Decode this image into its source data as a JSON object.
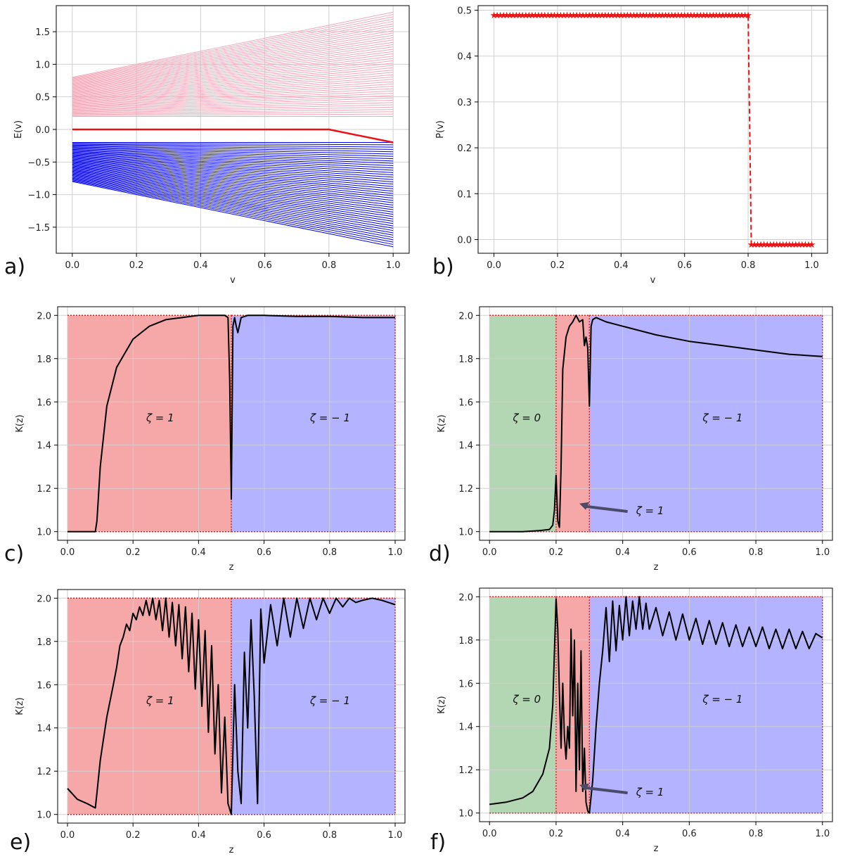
{
  "colors": {
    "pink_band": "#f4a6b8",
    "blue_band": "#0000ee",
    "red": "#ee1111",
    "region_red": "#f6a7a7",
    "region_blue": "#b3b3ff",
    "region_green": "#b2d7b2",
    "curve": "#000000",
    "grid": "#d0d0d0"
  },
  "chart_data": [
    {
      "id": "a",
      "panel_label": "a)",
      "type": "line",
      "title": "",
      "xlabel": "v",
      "ylabel": "E(v)",
      "xlim": [
        -0.05,
        1.05
      ],
      "ylim": [
        -1.9,
        1.9
      ],
      "xticks": [
        0.0,
        0.2,
        0.4,
        0.6,
        0.8,
        1.0
      ],
      "xtick_labels": [
        "0.0",
        "0.2",
        "0.4",
        "0.6",
        "0.8",
        "1.0"
      ],
      "yticks": [
        -1.5,
        -1.0,
        -0.5,
        0.0,
        0.5,
        1.0,
        1.5
      ],
      "ytick_labels": [
        "−1.5",
        "−1.0",
        "−0.5",
        "0.0",
        "0.5",
        "1.0",
        "1.5"
      ],
      "series": [
        {
          "name": "upper band (pink)",
          "description": "bulk states from E in [0.2,0.8] at v=0 fanning to [0.2,1.8] at v=1",
          "x": [
            0,
            1
          ],
          "y_min": [
            0.2,
            0.2
          ],
          "y_max": [
            0.8,
            1.8
          ]
        },
        {
          "name": "lower band (blue)",
          "description": "bulk states from E in [-0.8,-0.2] at v=0 fanning to [-1.8,-0.2] at v=1",
          "x": [
            0,
            1
          ],
          "y_min": [
            -0.8,
            -1.8
          ],
          "y_max": [
            -0.2,
            -0.2
          ]
        },
        {
          "name": "edge state (red)",
          "x": [
            0.0,
            0.8,
            1.0
          ],
          "y": [
            0.0,
            0.0,
            -0.2
          ]
        }
      ]
    },
    {
      "id": "b",
      "panel_label": "b)",
      "type": "line",
      "title": "",
      "xlabel": "v",
      "ylabel": "P(v)",
      "xlim": [
        -0.05,
        1.05
      ],
      "ylim": [
        -0.03,
        0.51
      ],
      "xticks": [
        0.0,
        0.2,
        0.4,
        0.6,
        0.8,
        1.0
      ],
      "xtick_labels": [
        "0.0",
        "0.2",
        "0.4",
        "0.6",
        "0.8",
        "1.0"
      ],
      "yticks": [
        0.0,
        0.1,
        0.2,
        0.3,
        0.4,
        0.5
      ],
      "ytick_labels": [
        "0.0",
        "0.1",
        "0.2",
        "0.3",
        "0.4",
        "0.5"
      ],
      "series": [
        {
          "name": "P(v)",
          "x": [
            0.0,
            0.8,
            0.81,
            1.0
          ],
          "y": [
            0.49,
            0.49,
            -0.01,
            -0.01
          ],
          "style": "dashed red with star markers"
        }
      ]
    },
    {
      "id": "c",
      "panel_label": "c)",
      "type": "area",
      "xlabel": "z",
      "ylabel": "K(z)",
      "xlim": [
        -0.03,
        1.03
      ],
      "ylim": [
        0.96,
        2.04
      ],
      "xticks": [
        0.0,
        0.2,
        0.4,
        0.6,
        0.8,
        1.0
      ],
      "xtick_labels": [
        "0.0",
        "0.2",
        "0.4",
        "0.6",
        "0.8",
        "1.0"
      ],
      "yticks": [
        1.0,
        1.2,
        1.4,
        1.6,
        1.8,
        2.0
      ],
      "ytick_labels": [
        "1.0",
        "1.2",
        "1.4",
        "1.6",
        "1.8",
        "2.0"
      ],
      "regions": [
        {
          "from": 0.0,
          "to": 0.5,
          "color": "red",
          "label": "ζ = 1",
          "label_x": 0.24,
          "label_y": 1.51
        },
        {
          "from": 0.5,
          "to": 1.0,
          "color": "blue",
          "label": "ζ = − 1",
          "label_x": 0.74,
          "label_y": 1.51
        }
      ],
      "series": [
        {
          "name": "K(z)",
          "x": [
            0.0,
            0.085,
            0.09,
            0.1,
            0.12,
            0.15,
            0.2,
            0.25,
            0.3,
            0.35,
            0.4,
            0.45,
            0.48,
            0.49,
            0.495,
            0.5,
            0.505,
            0.51,
            0.515,
            0.52,
            0.53,
            0.55,
            0.6,
            0.7,
            0.8,
            0.9,
            1.0
          ],
          "y": [
            1.0,
            1.0,
            1.05,
            1.3,
            1.58,
            1.76,
            1.89,
            1.95,
            1.98,
            1.99,
            2.0,
            2.0,
            2.0,
            1.99,
            1.7,
            1.15,
            1.95,
            1.99,
            1.95,
            1.92,
            1.99,
            2.0,
            2.0,
            1.995,
            1.995,
            1.99,
            1.99
          ]
        }
      ]
    },
    {
      "id": "d",
      "panel_label": "d)",
      "type": "area",
      "xlabel": "z",
      "ylabel": "K(z)",
      "xlim": [
        -0.03,
        1.03
      ],
      "ylim": [
        0.96,
        2.04
      ],
      "xticks": [
        0.0,
        0.2,
        0.4,
        0.6,
        0.8,
        1.0
      ],
      "xtick_labels": [
        "0.0",
        "0.2",
        "0.4",
        "0.6",
        "0.8",
        "1.0"
      ],
      "yticks": [
        1.0,
        1.2,
        1.4,
        1.6,
        1.8,
        2.0
      ],
      "ytick_labels": [
        "1.0",
        "1.2",
        "1.4",
        "1.6",
        "1.8",
        "2.0"
      ],
      "regions": [
        {
          "from": 0.0,
          "to": 0.2,
          "color": "green",
          "label": "ζ = 0",
          "label_x": 0.07,
          "label_y": 1.51
        },
        {
          "from": 0.2,
          "to": 0.3,
          "color": "red",
          "label": "ζ = 1",
          "label_x": 0.44,
          "label_y": 1.08,
          "arrow_to": [
            0.27,
            1.13
          ]
        },
        {
          "from": 0.3,
          "to": 1.0,
          "color": "blue",
          "label": "ζ = − 1",
          "label_x": 0.64,
          "label_y": 1.51
        }
      ],
      "series": [
        {
          "name": "K(z)",
          "x": [
            0.0,
            0.1,
            0.15,
            0.18,
            0.19,
            0.195,
            0.2,
            0.205,
            0.21,
            0.215,
            0.22,
            0.23,
            0.24,
            0.25,
            0.26,
            0.27,
            0.28,
            0.285,
            0.29,
            0.295,
            0.3,
            0.305,
            0.31,
            0.32,
            0.35,
            0.4,
            0.5,
            0.6,
            0.7,
            0.8,
            0.9,
            1.0
          ],
          "y": [
            1.0,
            1.0,
            1.005,
            1.01,
            1.03,
            1.1,
            1.26,
            1.05,
            1.02,
            1.3,
            1.75,
            1.9,
            1.95,
            1.97,
            2.0,
            1.97,
            1.98,
            1.86,
            1.9,
            1.85,
            1.58,
            1.95,
            1.98,
            1.99,
            1.97,
            1.95,
            1.91,
            1.88,
            1.86,
            1.84,
            1.82,
            1.81
          ]
        }
      ]
    },
    {
      "id": "e",
      "panel_label": "e)",
      "type": "area",
      "xlabel": "z",
      "ylabel": "K(z)",
      "xlim": [
        -0.03,
        1.03
      ],
      "ylim": [
        0.96,
        2.04
      ],
      "xticks": [
        0.0,
        0.2,
        0.4,
        0.6,
        0.8,
        1.0
      ],
      "xtick_labels": [
        "0.0",
        "0.2",
        "0.4",
        "0.6",
        "0.8",
        "1.0"
      ],
      "yticks": [
        1.0,
        1.2,
        1.4,
        1.6,
        1.8,
        2.0
      ],
      "ytick_labels": [
        "1.0",
        "1.2",
        "1.4",
        "1.6",
        "1.8",
        "2.0"
      ],
      "regions": [
        {
          "from": 0.0,
          "to": 0.5,
          "color": "red",
          "label": "ζ = 1",
          "label_x": 0.24,
          "label_y": 1.51
        },
        {
          "from": 0.5,
          "to": 1.0,
          "color": "blue",
          "label": "ζ = − 1",
          "label_x": 0.74,
          "label_y": 1.51
        }
      ],
      "series": [
        {
          "name": "K(z)",
          "x": [
            0.0,
            0.03,
            0.06,
            0.085,
            0.09,
            0.1,
            0.12,
            0.14,
            0.15,
            0.16,
            0.17,
            0.18,
            0.19,
            0.2,
            0.21,
            0.22,
            0.23,
            0.24,
            0.25,
            0.26,
            0.27,
            0.28,
            0.29,
            0.3,
            0.31,
            0.32,
            0.33,
            0.34,
            0.35,
            0.36,
            0.37,
            0.38,
            0.39,
            0.4,
            0.41,
            0.42,
            0.43,
            0.44,
            0.45,
            0.46,
            0.47,
            0.48,
            0.49,
            0.5,
            0.51,
            0.52,
            0.53,
            0.54,
            0.55,
            0.56,
            0.57,
            0.58,
            0.59,
            0.6,
            0.62,
            0.64,
            0.66,
            0.68,
            0.7,
            0.72,
            0.74,
            0.76,
            0.78,
            0.8,
            0.82,
            0.84,
            0.86,
            0.88,
            0.9,
            0.93,
            0.96,
            1.0
          ],
          "y": [
            1.12,
            1.07,
            1.05,
            1.03,
            1.1,
            1.25,
            1.45,
            1.6,
            1.68,
            1.78,
            1.82,
            1.88,
            1.85,
            1.93,
            1.9,
            1.96,
            1.92,
            1.99,
            1.92,
            2.0,
            1.9,
            1.99,
            1.85,
            2.0,
            1.82,
            1.98,
            1.78,
            1.97,
            1.72,
            1.96,
            1.66,
            1.93,
            1.58,
            1.9,
            1.5,
            1.85,
            1.38,
            1.78,
            1.28,
            1.6,
            1.1,
            1.45,
            1.05,
            1.0,
            1.6,
            1.2,
            1.05,
            1.75,
            1.4,
            1.9,
            1.55,
            1.05,
            1.95,
            1.7,
            1.97,
            1.78,
            2.0,
            1.82,
            2.0,
            1.86,
            2.0,
            1.9,
            2.0,
            1.93,
            2.0,
            1.96,
            2.0,
            1.98,
            1.99,
            2.0,
            1.99,
            1.97
          ]
        }
      ]
    },
    {
      "id": "f",
      "panel_label": "f)",
      "type": "area",
      "xlabel": "z",
      "ylabel": "K(z)",
      "xlim": [
        -0.03,
        1.03
      ],
      "ylim": [
        0.96,
        2.04
      ],
      "xticks": [
        0.0,
        0.2,
        0.4,
        0.6,
        0.8,
        1.0
      ],
      "xtick_labels": [
        "0.0",
        "0.2",
        "0.4",
        "0.6",
        "0.8",
        "1.0"
      ],
      "yticks": [
        1.0,
        1.2,
        1.4,
        1.6,
        1.8,
        2.0
      ],
      "ytick_labels": [
        "1.0",
        "1.2",
        "1.4",
        "1.6",
        "1.8",
        "2.0"
      ],
      "regions": [
        {
          "from": 0.0,
          "to": 0.2,
          "color": "green",
          "label": "ζ = 0",
          "label_x": 0.07,
          "label_y": 1.51
        },
        {
          "from": 0.2,
          "to": 0.3,
          "color": "red",
          "label": "ζ = 1",
          "label_x": 0.44,
          "label_y": 1.08,
          "arrow_to": [
            0.27,
            1.13
          ]
        },
        {
          "from": 0.3,
          "to": 1.0,
          "color": "blue",
          "label": "ζ = − 1",
          "label_x": 0.64,
          "label_y": 1.51
        }
      ],
      "series": [
        {
          "name": "K(z)",
          "x": [
            0.0,
            0.05,
            0.1,
            0.13,
            0.16,
            0.18,
            0.19,
            0.195,
            0.2,
            0.205,
            0.21,
            0.215,
            0.22,
            0.225,
            0.23,
            0.235,
            0.24,
            0.245,
            0.25,
            0.255,
            0.26,
            0.265,
            0.27,
            0.275,
            0.28,
            0.285,
            0.29,
            0.295,
            0.3,
            0.31,
            0.32,
            0.33,
            0.34,
            0.35,
            0.36,
            0.37,
            0.38,
            0.39,
            0.4,
            0.41,
            0.42,
            0.43,
            0.44,
            0.45,
            0.46,
            0.47,
            0.48,
            0.5,
            0.52,
            0.54,
            0.56,
            0.58,
            0.6,
            0.62,
            0.64,
            0.66,
            0.68,
            0.7,
            0.72,
            0.74,
            0.76,
            0.78,
            0.8,
            0.82,
            0.84,
            0.86,
            0.88,
            0.9,
            0.92,
            0.94,
            0.96,
            0.98,
            1.0
          ],
          "y": [
            1.04,
            1.05,
            1.07,
            1.1,
            1.18,
            1.3,
            1.5,
            1.75,
            1.99,
            1.85,
            1.55,
            1.3,
            1.6,
            1.35,
            1.25,
            1.4,
            1.3,
            1.85,
            1.45,
            1.8,
            1.1,
            1.6,
            1.2,
            1.75,
            1.1,
            1.3,
            1.05,
            1.01,
            1.0,
            1.15,
            1.4,
            1.6,
            1.75,
            1.95,
            1.7,
            1.98,
            1.75,
            1.96,
            1.8,
            2.0,
            1.82,
            1.98,
            1.85,
            2.0,
            1.85,
            1.97,
            1.85,
            1.95,
            1.82,
            1.93,
            1.8,
            1.92,
            1.8,
            1.9,
            1.78,
            1.89,
            1.78,
            1.88,
            1.77,
            1.87,
            1.77,
            1.86,
            1.77,
            1.86,
            1.76,
            1.85,
            1.76,
            1.85,
            1.76,
            1.84,
            1.76,
            1.83,
            1.81
          ]
        }
      ]
    }
  ]
}
